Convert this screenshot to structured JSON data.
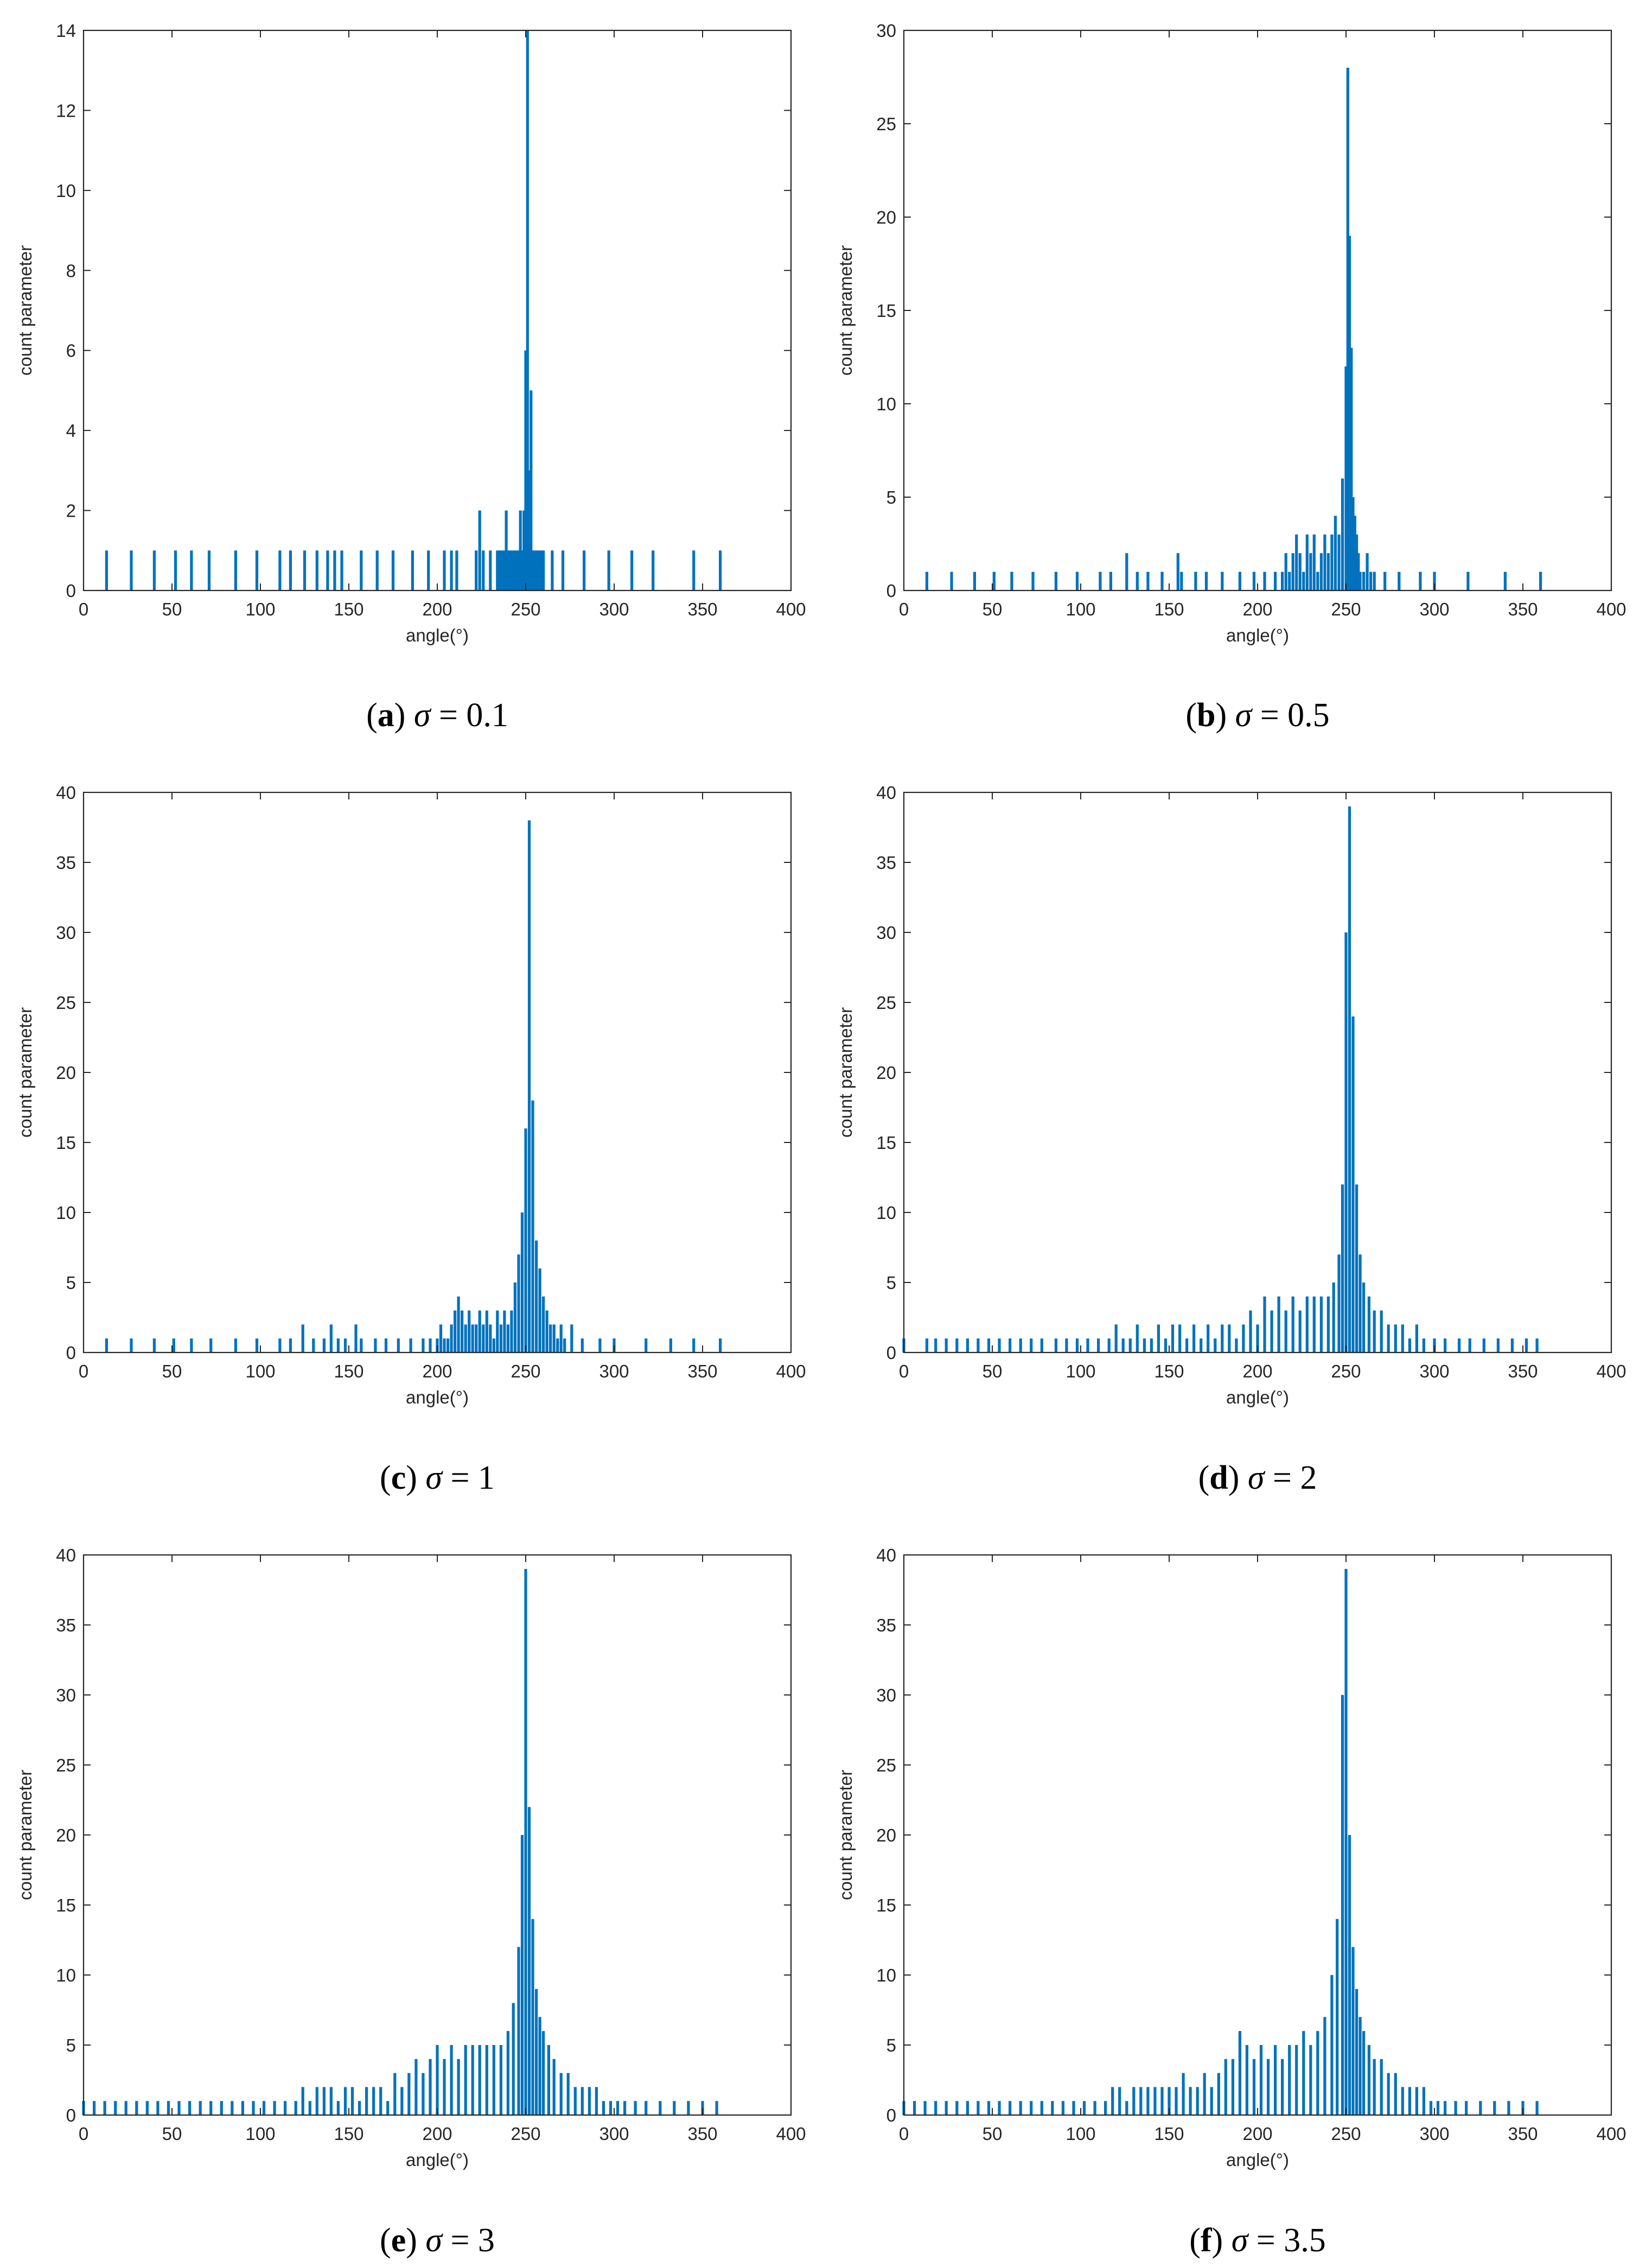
{
  "figure": {
    "bar_color": "#0072BD",
    "axis_color": "#262626",
    "panels": [
      {
        "id": "a",
        "caption": {
          "letter": "a",
          "sigma": "σ",
          "relation": "= 0.1"
        },
        "chart_data": {
          "type": "bar",
          "xlabel": "angle(°)",
          "ylabel": "count parameter",
          "xlim": [
            0,
            400
          ],
          "ylim": [
            0,
            14
          ],
          "xticks": [
            0,
            50,
            100,
            150,
            200,
            250,
            300,
            350,
            400
          ],
          "yticks": [
            0,
            2,
            4,
            6,
            8,
            10,
            12,
            14
          ],
          "grid": false,
          "x": [
            13,
            27,
            40,
            52,
            61,
            71,
            86,
            98,
            111,
            117,
            125,
            132,
            138,
            142,
            146,
            157,
            166,
            175,
            186,
            195,
            204,
            208,
            211,
            222,
            224,
            226,
            230,
            234,
            235,
            236,
            237,
            238,
            239,
            240,
            241,
            242,
            243,
            244,
            245,
            246,
            247,
            248,
            249,
            250,
            251,
            252,
            253,
            254,
            255,
            256,
            257,
            258,
            259,
            260,
            265,
            271,
            283,
            297,
            310,
            322,
            345,
            360
          ],
          "values": [
            1,
            1,
            1,
            1,
            1,
            1,
            1,
            1,
            1,
            1,
            1,
            1,
            1,
            1,
            1,
            1,
            1,
            1,
            1,
            1,
            1,
            1,
            1,
            1,
            2,
            1,
            1,
            1,
            1,
            1,
            1,
            1,
            2,
            1,
            1,
            1,
            1,
            1,
            1,
            1,
            2,
            1,
            2,
            6,
            14,
            3,
            5,
            1,
            1,
            1,
            1,
            1,
            1,
            1,
            1,
            1,
            1,
            1,
            1,
            1,
            1,
            1
          ]
        }
      },
      {
        "id": "b",
        "caption": {
          "letter": "b",
          "sigma": "σ",
          "relation": "= 0.5"
        },
        "chart_data": {
          "type": "bar",
          "xlabel": "angle(°)",
          "ylabel": "count parameter",
          "xlim": [
            0,
            400
          ],
          "ylim": [
            0,
            30
          ],
          "xticks": [
            0,
            50,
            100,
            150,
            200,
            250,
            300,
            350,
            400
          ],
          "yticks": [
            0,
            5,
            10,
            15,
            20,
            25,
            30
          ],
          "grid": false,
          "x": [
            13,
            27,
            40,
            51,
            61,
            73,
            86,
            98,
            111,
            117,
            126,
            132,
            138,
            146,
            155,
            157,
            165,
            171,
            180,
            190,
            198,
            204,
            210,
            214,
            216,
            218,
            220,
            222,
            224,
            226,
            228,
            230,
            232,
            234,
            236,
            238,
            240,
            242,
            244,
            246,
            248,
            250,
            251,
            252,
            253,
            254,
            255,
            256,
            257,
            258,
            260,
            262,
            264,
            266,
            272,
            280,
            292,
            300,
            319,
            340,
            360
          ],
          "values": [
            1,
            1,
            1,
            1,
            1,
            1,
            1,
            1,
            1,
            1,
            2,
            1,
            1,
            1,
            2,
            1,
            1,
            1,
            1,
            1,
            1,
            1,
            1,
            1,
            2,
            1,
            2,
            3,
            2,
            1,
            3,
            2,
            3,
            1,
            2,
            3,
            2,
            3,
            4,
            3,
            6,
            12,
            28,
            19,
            13,
            5,
            4,
            3,
            2,
            1,
            1,
            2,
            1,
            1,
            1,
            1,
            1,
            1,
            1,
            1,
            1
          ]
        }
      },
      {
        "id": "c",
        "caption": {
          "letter": "c",
          "sigma": "σ",
          "relation": "= 1"
        },
        "chart_data": {
          "type": "bar",
          "xlabel": "angle(°)",
          "ylabel": "count parameter",
          "xlim": [
            0,
            400
          ],
          "ylim": [
            0,
            40
          ],
          "xticks": [
            0,
            50,
            100,
            150,
            200,
            250,
            300,
            350,
            400
          ],
          "yticks": [
            0,
            5,
            10,
            15,
            20,
            25,
            30,
            35,
            40
          ],
          "grid": false,
          "x": [
            13,
            27,
            40,
            51,
            61,
            72,
            86,
            98,
            111,
            117,
            124,
            130,
            136,
            140,
            144,
            148,
            154,
            157,
            165,
            171,
            178,
            185,
            192,
            196,
            200,
            202,
            204,
            206,
            208,
            210,
            212,
            214,
            216,
            218,
            220,
            222,
            224,
            226,
            228,
            230,
            232,
            234,
            236,
            238,
            240,
            242,
            244,
            246,
            248,
            250,
            252,
            254,
            256,
            258,
            260,
            262,
            264,
            266,
            268,
            270,
            272,
            276,
            282,
            292,
            300,
            318,
            332,
            345,
            360
          ],
          "values": [
            1,
            1,
            1,
            1,
            1,
            1,
            1,
            1,
            1,
            1,
            2,
            1,
            1,
            2,
            1,
            1,
            2,
            1,
            1,
            1,
            1,
            1,
            1,
            1,
            1,
            2,
            1,
            1,
            2,
            3,
            4,
            3,
            2,
            3,
            2,
            2,
            3,
            2,
            3,
            2,
            1,
            3,
            2,
            3,
            2,
            3,
            5,
            7,
            10,
            16,
            38,
            18,
            8,
            6,
            4,
            3,
            2,
            2,
            1,
            2,
            1,
            2,
            1,
            1,
            1,
            1,
            1,
            1,
            1
          ]
        }
      },
      {
        "id": "d",
        "caption": {
          "letter": "d",
          "sigma": "σ",
          "relation": "= 2"
        },
        "chart_data": {
          "type": "bar",
          "xlabel": "angle(°)",
          "ylabel": "count parameter",
          "xlim": [
            0,
            400
          ],
          "ylim": [
            0,
            40
          ],
          "xticks": [
            0,
            50,
            100,
            150,
            200,
            250,
            300,
            350,
            400
          ],
          "yticks": [
            0,
            5,
            10,
            15,
            20,
            25,
            30,
            35,
            40
          ],
          "grid": false,
          "x": [
            0,
            4,
            8,
            13,
            18,
            24,
            30,
            36,
            42,
            48,
            54,
            60,
            66,
            72,
            78,
            86,
            92,
            98,
            104,
            110,
            116,
            120,
            124,
            128,
            132,
            136,
            140,
            144,
            148,
            152,
            156,
            160,
            164,
            168,
            172,
            176,
            180,
            184,
            188,
            192,
            196,
            200,
            204,
            208,
            212,
            216,
            220,
            224,
            228,
            232,
            236,
            240,
            243,
            246,
            248,
            250,
            252,
            254,
            256,
            258,
            260,
            263,
            266,
            270,
            274,
            278,
            282,
            286,
            290,
            294,
            300,
            306,
            314,
            320,
            328,
            336,
            344,
            352,
            358
          ],
          "values": [
            1,
            0,
            0,
            1,
            1,
            1,
            1,
            1,
            1,
            1,
            1,
            1,
            1,
            1,
            1,
            1,
            1,
            1,
            1,
            1,
            1,
            2,
            1,
            1,
            2,
            1,
            1,
            2,
            1,
            2,
            2,
            1,
            2,
            1,
            2,
            1,
            2,
            2,
            1,
            2,
            3,
            2,
            4,
            3,
            4,
            3,
            4,
            3,
            4,
            4,
            4,
            4,
            5,
            7,
            12,
            30,
            39,
            24,
            12,
            7,
            5,
            4,
            3,
            3,
            2,
            2,
            2,
            1,
            2,
            1,
            1,
            1,
            1,
            1,
            1,
            1,
            1,
            1,
            1
          ]
        }
      },
      {
        "id": "e",
        "caption": {
          "letter": "e",
          "sigma": "σ",
          "relation": "= 3"
        },
        "chart_data": {
          "type": "bar",
          "xlabel": "angle(°)",
          "ylabel": "count parameter",
          "xlim": [
            0,
            400
          ],
          "ylim": [
            0,
            40
          ],
          "xticks": [
            0,
            50,
            100,
            150,
            200,
            250,
            300,
            350,
            400
          ],
          "yticks": [
            0,
            5,
            10,
            15,
            20,
            25,
            30,
            35,
            40
          ],
          "grid": false,
          "x": [
            0,
            6,
            12,
            18,
            24,
            30,
            36,
            42,
            48,
            54,
            60,
            66,
            72,
            78,
            84,
            90,
            96,
            102,
            108,
            114,
            120,
            124,
            128,
            132,
            136,
            140,
            144,
            148,
            152,
            156,
            160,
            164,
            168,
            172,
            176,
            180,
            184,
            188,
            192,
            196,
            200,
            204,
            208,
            212,
            216,
            220,
            224,
            228,
            232,
            236,
            240,
            243,
            246,
            248,
            250,
            252,
            254,
            256,
            258,
            260,
            263,
            266,
            270,
            274,
            278,
            282,
            286,
            290,
            294,
            298,
            302,
            306,
            312,
            318,
            326,
            334,
            342,
            350,
            358
          ],
          "values": [
            1,
            1,
            1,
            1,
            1,
            1,
            1,
            1,
            1,
            1,
            1,
            1,
            1,
            1,
            1,
            1,
            1,
            1,
            1,
            1,
            1,
            2,
            1,
            2,
            2,
            2,
            1,
            2,
            2,
            1,
            2,
            2,
            2,
            1,
            3,
            2,
            3,
            4,
            3,
            4,
            5,
            4,
            5,
            4,
            5,
            5,
            5,
            5,
            5,
            5,
            6,
            8,
            12,
            20,
            39,
            22,
            14,
            9,
            7,
            6,
            5,
            4,
            3,
            3,
            2,
            2,
            2,
            2,
            1,
            1,
            1,
            1,
            1,
            1,
            1,
            1,
            1,
            1,
            1
          ]
        }
      },
      {
        "id": "f",
        "caption": {
          "letter": "f",
          "sigma": "σ",
          "relation": "= 3.5"
        },
        "chart_data": {
          "type": "bar",
          "xlabel": "angle(°)",
          "ylabel": "count parameter",
          "xlim": [
            0,
            400
          ],
          "ylim": [
            0,
            40
          ],
          "xticks": [
            0,
            50,
            100,
            150,
            200,
            250,
            300,
            350,
            400
          ],
          "yticks": [
            0,
            5,
            10,
            15,
            20,
            25,
            30,
            35,
            40
          ],
          "grid": false,
          "x": [
            0,
            6,
            12,
            18,
            24,
            30,
            36,
            42,
            48,
            54,
            60,
            66,
            72,
            78,
            84,
            90,
            96,
            102,
            108,
            114,
            118,
            122,
            126,
            130,
            134,
            138,
            142,
            146,
            150,
            154,
            158,
            162,
            166,
            170,
            174,
            178,
            182,
            186,
            190,
            194,
            198,
            202,
            206,
            210,
            214,
            218,
            222,
            226,
            230,
            234,
            238,
            242,
            245,
            248,
            250,
            252,
            254,
            256,
            258,
            260,
            263,
            266,
            270,
            274,
            278,
            282,
            286,
            290,
            294,
            298,
            302,
            306,
            312,
            318,
            326,
            334,
            342,
            350,
            358
          ],
          "values": [
            1,
            1,
            1,
            1,
            1,
            1,
            1,
            1,
            1,
            1,
            1,
            1,
            1,
            1,
            1,
            1,
            1,
            1,
            1,
            1,
            2,
            2,
            1,
            2,
            2,
            2,
            2,
            2,
            2,
            2,
            3,
            2,
            2,
            3,
            2,
            3,
            4,
            4,
            6,
            5,
            4,
            5,
            4,
            5,
            4,
            5,
            5,
            6,
            5,
            6,
            7,
            10,
            14,
            30,
            39,
            20,
            12,
            9,
            7,
            6,
            5,
            4,
            4,
            3,
            3,
            2,
            2,
            2,
            2,
            1,
            1,
            1,
            1,
            1,
            1,
            1,
            1,
            1,
            1
          ]
        }
      }
    ]
  }
}
